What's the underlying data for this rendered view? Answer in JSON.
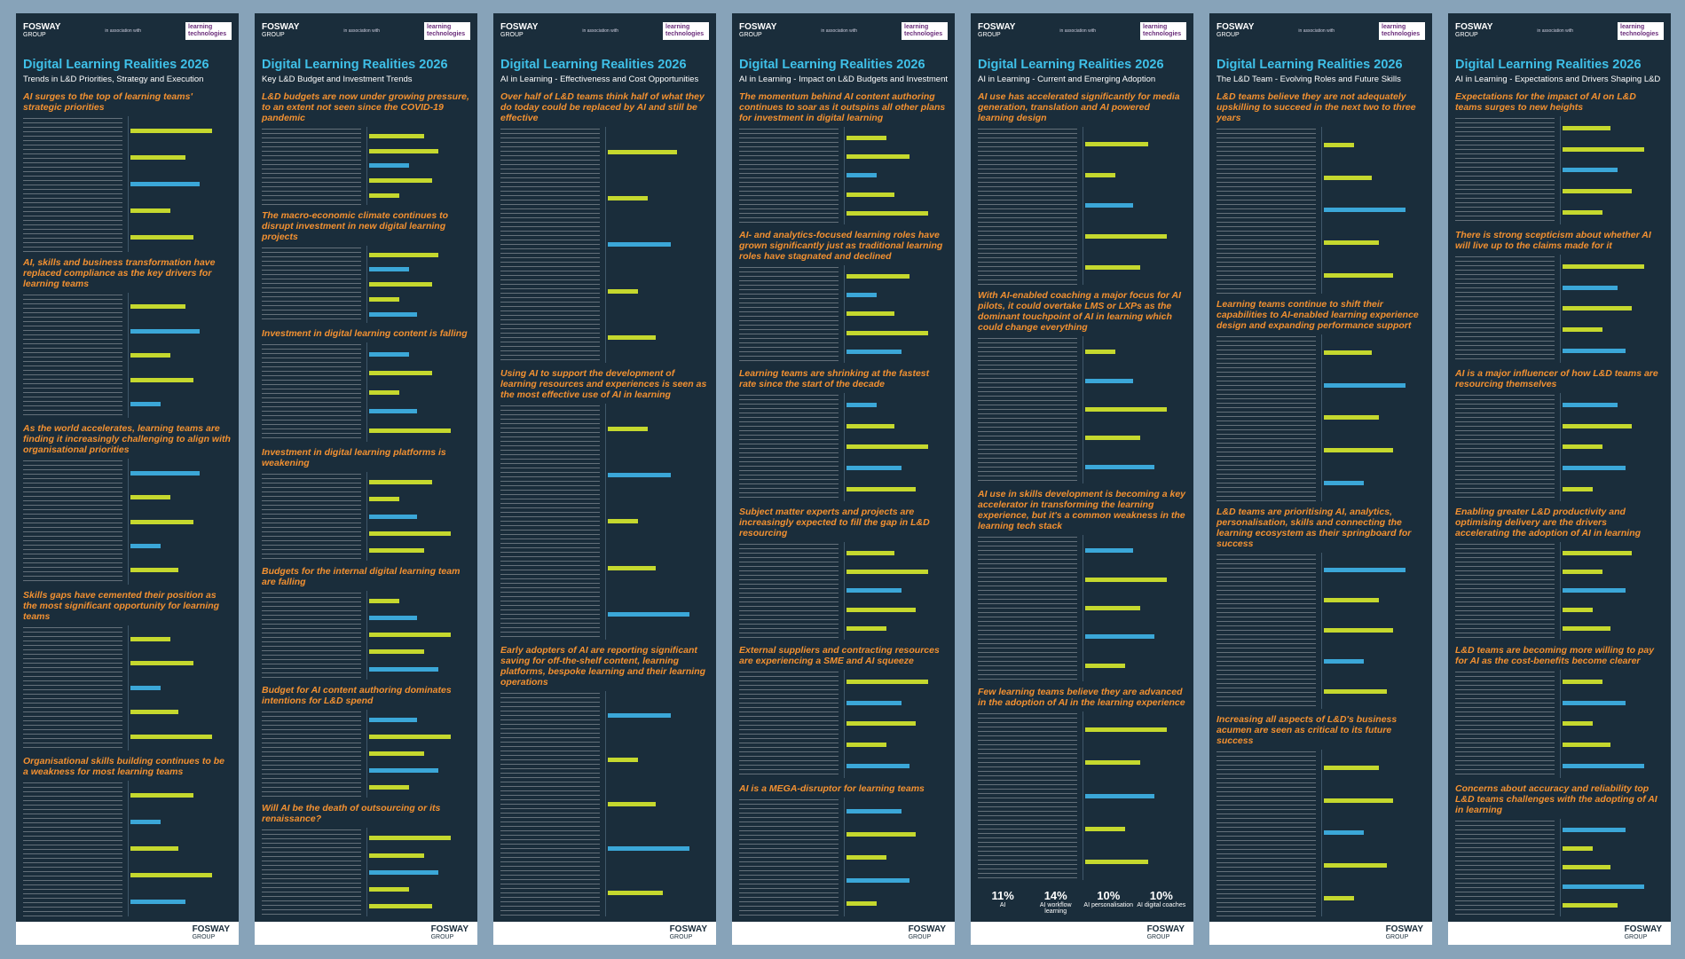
{
  "brand": {
    "logo": "FOSWAY",
    "logo_sub": "GROUP",
    "association": "in association with",
    "partner": "learning technologies",
    "title": "Digital Learning Realities 2026"
  },
  "panels": [
    {
      "subtitle": "Trends in L&D Priorities, Strategy and Execution",
      "sections": [
        "AI surges to the top of learning teams' strategic priorities",
        "AI, skills and business transformation have replaced compliance as the key drivers for learning teams",
        "As the world accelerates, learning teams are finding it increasingly challenging to align with organisational priorities",
        "Skills gaps have cemented their position as the most significant opportunity for learning teams",
        "Organisational skills building continues to be a weakness for most learning teams"
      ]
    },
    {
      "subtitle": "Key L&D Budget and Investment Trends",
      "sections": [
        "L&D budgets are now under growing pressure, to an extent not seen since the COVID-19 pandemic",
        "The macro-economic climate continues to disrupt investment in new digital learning projects",
        "Investment in digital learning content is falling",
        "Investment in digital learning platforms is weakening",
        "Budgets for the internal digital learning team are falling",
        "Budget for AI content authoring dominates intentions for L&D spend",
        "Will AI be the death of outsourcing or its renaissance?"
      ]
    },
    {
      "subtitle": "AI in Learning - Effectiveness and Cost Opportunities",
      "sections": [
        "Over half of L&D teams think half of what they do today could be replaced by AI and still be effective",
        "Using AI to support the development of learning resources and experiences is seen as the most effective use of AI in learning",
        "Early adopters of AI are reporting significant saving for off-the-shelf content, learning platforms, bespoke learning and their learning operations"
      ]
    },
    {
      "subtitle": "AI in Learning - Impact on L&D Budgets and Investment",
      "sections": [
        "The momentum behind AI content authoring continues to soar as it outspins all other plans for investment in digital learning",
        "AI- and analytics-focused learning roles have grown significantly just as traditional learning roles have stagnated and declined",
        "Learning teams are shrinking at the fastest rate since the start of the decade",
        "Subject matter experts and projects are increasingly expected to fill the gap in L&D resourcing",
        "External suppliers and contracting resources are experiencing a SME and AI squeeze",
        "AI is a MEGA-disruptor for learning teams"
      ]
    },
    {
      "subtitle": "AI in Learning - Current and Emerging Adoption",
      "sections": [
        "AI use has accelerated significantly for media generation, translation and AI powered learning design",
        "With AI-enabled coaching a major focus for AI pilots, it could overtake LMS or LXPs as the dominant touchpoint of AI in learning which could change everything",
        "AI use in skills development is becoming a key accelerator in transforming the learning experience, but it's a common weakness in the learning tech stack",
        "Few learning teams believe they are advanced in the adoption of AI in the learning experience"
      ],
      "stats": [
        {
          "value": "11%",
          "label": "AI"
        },
        {
          "value": "14%",
          "label": "AI workflow learning"
        },
        {
          "value": "10%",
          "label": "AI personalisation"
        },
        {
          "value": "10%",
          "label": "AI digital coaches"
        }
      ]
    },
    {
      "subtitle": "The L&D Team - Evolving Roles and Future Skills",
      "sections": [
        "L&D teams believe they are not adequately upskilling to succeed in the next two to three years",
        "Learning teams continue to shift their capabilities to AI-enabled learning experience design and expanding performance support",
        "L&D teams are prioritising AI, analytics, personalisation, skills and connecting the learning ecosystem as their springboard for success",
        "Increasing all aspects of L&D's business acumen are seen as critical to its future success"
      ]
    },
    {
      "subtitle": "AI in Learning - Expectations and Drivers Shaping L&D",
      "sections": [
        "Expectations for the impact of AI on L&D teams surges to new heights",
        "There is strong scepticism about whether AI will live up to the claims made for it",
        "AI is a major influencer of how L&D teams are resourcing themselves",
        "Enabling greater L&D productivity and optimising delivery are the drivers accelerating the adoption of AI in learning",
        "L&D teams are becoming more willing to pay for AI as the cost-benefits become clearer",
        "Concerns about accuracy and reliability top L&D teams challenges with the adopting of AI in learning"
      ]
    }
  ]
}
